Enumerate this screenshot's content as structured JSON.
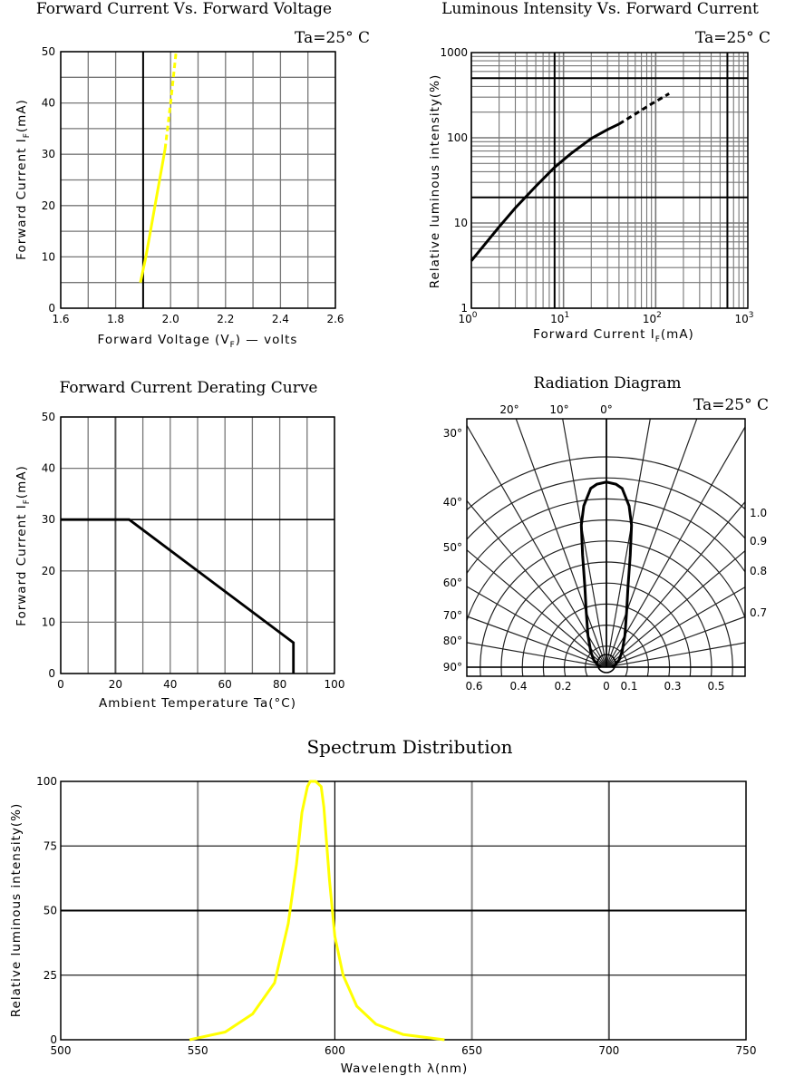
{
  "colors": {
    "yellow": "#ffff00",
    "grid": "#777777",
    "curve": "#000000"
  },
  "chart_data": [
    {
      "id": "vf",
      "type": "line",
      "title": "Forward Current Vs. Forward Voltage",
      "annotation": "Ta=25° C",
      "xlabel_main": "Forward  Voltage  (V",
      "xlabel_sub": "F",
      "xlabel_tail": ")  —  volts",
      "ylabel_main": "Forward  Current  I",
      "ylabel_sub": "F",
      "ylabel_tail": "(mA)",
      "xlim": [
        1.6,
        2.6
      ],
      "ylim": [
        0,
        50
      ],
      "xticks": [
        "1.6",
        "1.8",
        "2.0",
        "2.2",
        "2.4",
        "2.6"
      ],
      "yticks": [
        "0",
        "10",
        "20",
        "30",
        "40",
        "50"
      ],
      "series": [
        {
          "style": "solid",
          "x": [
            1.89,
            1.91,
            1.93,
            1.95,
            1.97,
            1.98
          ],
          "y": [
            5,
            10,
            16,
            22,
            28,
            31
          ]
        },
        {
          "style": "dashed",
          "x": [
            1.98,
            2.0,
            2.02
          ],
          "y": [
            31,
            40,
            50
          ]
        }
      ]
    },
    {
      "id": "iv",
      "type": "line",
      "title": "Luminous Intensity Vs. Forward Current",
      "annotation": "Ta=25° C",
      "xlabel_main": "Forward  Current  I",
      "xlabel_sub": "F",
      "xlabel_tail": "(mA)",
      "ylabel": "Relative  luminous  intensity(%)",
      "xscale": "log",
      "yscale": "log",
      "xlim": [
        1,
        1000
      ],
      "ylim": [
        1,
        1000
      ],
      "xticks": [
        {
          "base": "10",
          "exp": "0"
        },
        {
          "base": "10",
          "exp": "1"
        },
        {
          "base": "10",
          "exp": "2"
        },
        {
          "base": "10",
          "exp": "3"
        }
      ],
      "yticks": [
        "1",
        "10",
        "100",
        "1000"
      ],
      "series": [
        {
          "style": "solid",
          "x": [
            1,
            2,
            3,
            5,
            8,
            12,
            20,
            30,
            40
          ],
          "y": [
            3.6,
            9,
            15,
            27,
            45,
            65,
            98,
            125,
            145
          ]
        },
        {
          "style": "dashed",
          "x": [
            40,
            60,
            90,
            140
          ],
          "y": [
            145,
            190,
            250,
            330
          ]
        }
      ]
    },
    {
      "id": "derating",
      "type": "line",
      "title": "Forward Current Derating Curve",
      "xlabel": "Ambient  Temperature  Ta(°C)",
      "ylabel_main": "Forward  Current  I",
      "ylabel_sub": "F",
      "ylabel_tail": "(mA)",
      "xlim": [
        0,
        100
      ],
      "ylim": [
        0,
        50
      ],
      "xticks": [
        "0",
        "20",
        "40",
        "60",
        "80",
        "100"
      ],
      "yticks": [
        "0",
        "10",
        "20",
        "30",
        "40",
        "50"
      ],
      "series": [
        {
          "style": "solid",
          "x": [
            0,
            25,
            85,
            85
          ],
          "y": [
            30,
            30,
            6,
            0
          ]
        }
      ]
    },
    {
      "id": "radiation",
      "type": "polar",
      "title": "Radiation Diagram",
      "annotation": "Ta=25° C",
      "top_angle_labels": [
        "20°",
        "10°",
        "0°"
      ],
      "left_angle_labels": [
        "30°",
        "40°",
        "50°",
        "60°",
        "70°",
        "80°",
        "90°"
      ],
      "right_labels": [
        "1.0",
        "0.9",
        "0.8",
        "0.7"
      ],
      "bottom_labels": [
        "0.6",
        "0.4",
        "0.2",
        "0",
        "0.1",
        "0.3",
        "0.5"
      ],
      "pattern": {
        "angles_deg": [
          0,
          3,
          5,
          8,
          10,
          12,
          15,
          20,
          30,
          45,
          60,
          75,
          90
        ],
        "relative": [
          1.0,
          0.99,
          0.97,
          0.88,
          0.78,
          0.62,
          0.45,
          0.32,
          0.2,
          0.12,
          0.08,
          0.05,
          0.03
        ]
      }
    },
    {
      "id": "spectrum",
      "type": "line",
      "title": "Spectrum Distribution",
      "xlabel": "Wavelength  λ(nm)",
      "ylabel": "Relative  luminous  intensity(%)",
      "xlim": [
        500,
        750
      ],
      "ylim": [
        0,
        100
      ],
      "xticks": [
        "500",
        "550",
        "600",
        "650",
        "700",
        "750"
      ],
      "yticks": [
        "0",
        "25",
        "50",
        "75",
        "100"
      ],
      "series": [
        {
          "style": "solid",
          "x": [
            547,
            560,
            570,
            578,
            583,
            586,
            588,
            590,
            591,
            593,
            595,
            596,
            598,
            600,
            603,
            608,
            615,
            625,
            640
          ],
          "y": [
            0,
            3,
            10,
            22,
            45,
            68,
            88,
            98,
            100,
            100,
            98,
            90,
            62,
            40,
            25,
            13,
            6,
            2,
            0
          ]
        }
      ]
    }
  ]
}
